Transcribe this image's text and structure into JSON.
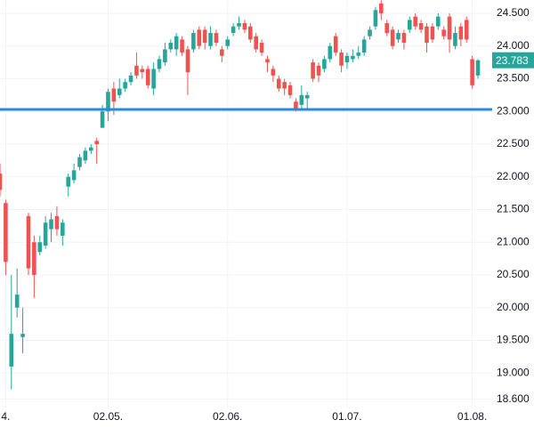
{
  "chart_data": {
    "type": "candlestick",
    "open": [
      22050,
      21600,
      19100,
      20000,
      19550,
      21400,
      21000,
      20850,
      20950,
      21200,
      21400,
      21100,
      21850,
      21950,
      22150,
      22250,
      22400,
      22550,
      22750,
      23000,
      23350,
      23250,
      23350,
      23450,
      23700,
      23650,
      23650,
      23350,
      23650,
      23750,
      23950,
      23950,
      24100,
      23950,
      23950,
      24250,
      24250,
      24000,
      24200,
      23950,
      24000,
      24200,
      24300,
      24350,
      24300,
      24150,
      24050,
      23800,
      23650,
      23500,
      23450,
      23400,
      23150,
      23100,
      23200,
      23750,
      23700,
      23650,
      23800,
      24150,
      23900,
      23750,
      23800,
      23850,
      23900,
      24150,
      24300,
      24650,
      24350,
      24250,
      24100,
      24200,
      24250,
      24450,
      24350,
      24300,
      24300,
      24300,
      24250,
      24450,
      24000,
      24300,
      24400,
      23800,
      23550
    ],
    "high": [
      22200,
      21650,
      20500,
      20600,
      20000,
      21450,
      21100,
      21100,
      21400,
      21450,
      21550,
      21350,
      22050,
      22200,
      22350,
      22450,
      22500,
      22600,
      23100,
      23350,
      23450,
      23500,
      23500,
      23600,
      23900,
      23700,
      23700,
      23750,
      23850,
      24050,
      24100,
      24200,
      24150,
      24000,
      24250,
      24300,
      24300,
      24300,
      24250,
      24000,
      24150,
      24350,
      24450,
      24400,
      24350,
      24200,
      24100,
      23850,
      23700,
      23550,
      23500,
      23450,
      23200,
      23400,
      23300,
      23800,
      23750,
      23850,
      24050,
      24200,
      23950,
      23900,
      23950,
      24000,
      24150,
      24300,
      24600,
      24700,
      24400,
      24300,
      24250,
      24250,
      24450,
      24500,
      24400,
      24350,
      24350,
      24500,
      24300,
      24500,
      24300,
      24350,
      24450,
      23850,
      23800
    ],
    "low": [
      21700,
      20500,
      18750,
      19850,
      19300,
      20500,
      20150,
      20800,
      20900,
      21000,
      21100,
      20950,
      21700,
      21900,
      22100,
      22200,
      22350,
      22200,
      22750,
      22850,
      22950,
      23200,
      23300,
      23400,
      23500,
      23500,
      23350,
      23250,
      23600,
      23700,
      23900,
      23850,
      23850,
      23250,
      23900,
      23950,
      23950,
      23950,
      24000,
      23750,
      23950,
      24150,
      24250,
      24200,
      24050,
      23900,
      23850,
      23600,
      23450,
      23300,
      23250,
      23200,
      23000,
      23050,
      23050,
      23450,
      23450,
      23600,
      23750,
      23850,
      23600,
      23650,
      23750,
      23800,
      23850,
      24100,
      24250,
      24400,
      24150,
      23950,
      24050,
      23950,
      24200,
      24250,
      24200,
      23900,
      24050,
      24250,
      24100,
      23900,
      23950,
      24000,
      24050,
      23350,
      23500
    ],
    "close": [
      21800,
      20700,
      19600,
      20200,
      19600,
      20600,
      20500,
      21000,
      21300,
      21350,
      21200,
      21300,
      22000,
      22100,
      22300,
      22400,
      22450,
      22500,
      23000,
      23300,
      23150,
      23350,
      23450,
      23550,
      23550,
      23600,
      23400,
      23650,
      23800,
      23950,
      24050,
      24150,
      23900,
      23600,
      24200,
      24000,
      24050,
      24200,
      24050,
      23850,
      24100,
      24300,
      24350,
      24250,
      24100,
      23950,
      23900,
      23750,
      23550,
      23350,
      23350,
      23250,
      23050,
      23250,
      23250,
      23500,
      23550,
      23800,
      24000,
      23900,
      23700,
      23850,
      23850,
      23900,
      24100,
      24250,
      24550,
      24500,
      24200,
      24000,
      24200,
      24050,
      24400,
      24300,
      24250,
      24050,
      24100,
      24450,
      24150,
      24100,
      24200,
      24100,
      24100,
      23400,
      23783
    ],
    "last_price_label": "23.783",
    "up_color": "#26a69a",
    "down_color": "#ef5350",
    "hline": {
      "value": 23030,
      "color": "#2a8ae0"
    },
    "xlim": [
      0,
      86.5
    ],
    "xticks": [
      {
        "value": 1,
        "label": "4."
      },
      {
        "value": 19,
        "label": "02.05."
      },
      {
        "value": 40,
        "label": "02.06."
      },
      {
        "value": 61,
        "label": "01.07."
      },
      {
        "value": 83,
        "label": "01.08."
      }
    ],
    "ylim": [
      18473,
      24704
    ],
    "yticks": [
      {
        "value": 18600,
        "label": "18.600"
      },
      {
        "value": 19000,
        "label": "19.000"
      },
      {
        "value": 19500,
        "label": "19.500"
      },
      {
        "value": 20000,
        "label": "20.000"
      },
      {
        "value": 20500,
        "label": "20.500"
      },
      {
        "value": 21000,
        "label": "21.000"
      },
      {
        "value": 21500,
        "label": "21.500"
      },
      {
        "value": 22000,
        "label": "22.000"
      },
      {
        "value": 22500,
        "label": "22.500"
      },
      {
        "value": 23000,
        "label": "23.000"
      },
      {
        "value": 23500,
        "label": "23.500"
      },
      {
        "value": 24000,
        "label": "24.000"
      },
      {
        "value": 24500,
        "label": "24.500"
      }
    ],
    "grid": true
  }
}
